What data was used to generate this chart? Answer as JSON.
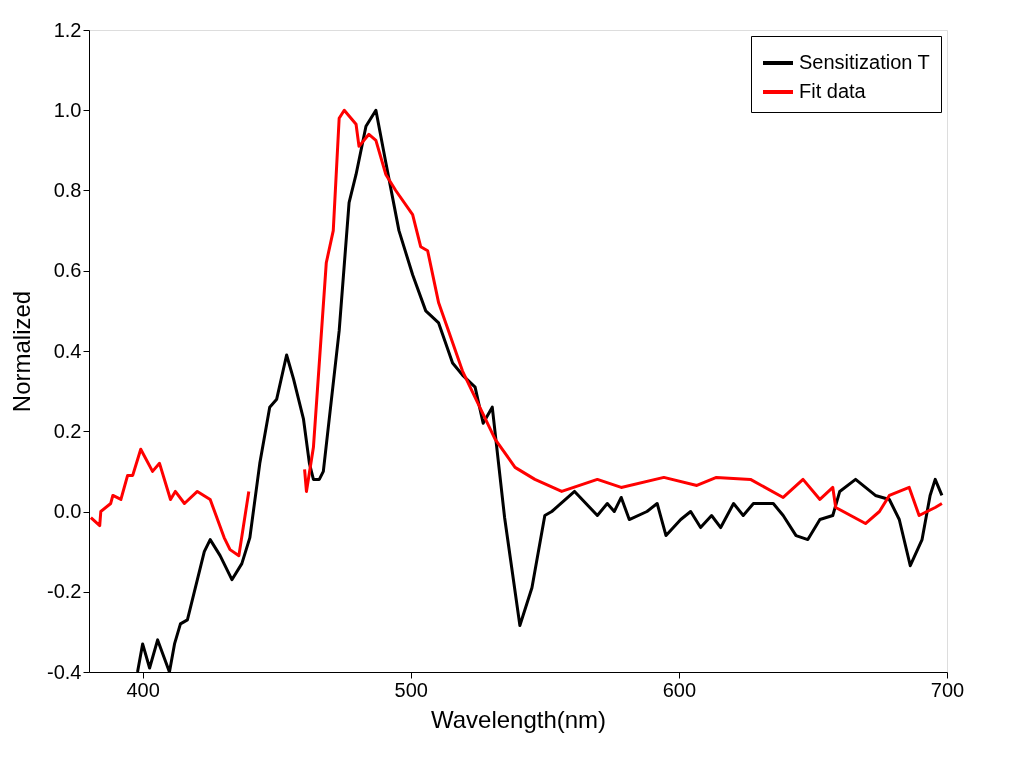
{
  "chart_data": {
    "type": "line",
    "xlabel": "Wavelength(nm)",
    "ylabel": "Normalized",
    "xlim": [
      380,
      700
    ],
    "xticks": [
      400,
      500,
      600,
      700
    ],
    "ylim": [
      -0.4,
      1.2
    ],
    "yticks": [
      {
        "value": -0.4,
        "label": "-0.4"
      },
      {
        "value": -0.2,
        "label": "-0.2"
      },
      {
        "value": 0,
        "label": "0.0"
      },
      {
        "value": 0.2,
        "label": "0.2"
      },
      {
        "value": 0.4,
        "label": "0.4"
      },
      {
        "value": 0.6,
        "label": "0.6"
      },
      {
        "value": 0.8,
        "label": "0.8"
      },
      {
        "value": 1,
        "label": "1.0"
      },
      {
        "value": 1.2,
        "label": "1.2"
      }
    ],
    "grid": false,
    "legend": "top right",
    "marker": "none",
    "line_style": "solid",
    "series": [
      {
        "name": "Sensitization T",
        "color": "#000000",
        "x": [
          398.1,
          400,
          402.6,
          405.6,
          410,
          411.9,
          414.1,
          416.7,
          423,
          425.2,
          428.9,
          433.3,
          437,
          440,
          443.7,
          447.4,
          450,
          453.7,
          456.3,
          460,
          462.2,
          463.7,
          465.9,
          467.4,
          473.3,
          477,
          479.6,
          483.3,
          487,
          490.7,
          495.6,
          500.7,
          505.6,
          510.4,
          515.6,
          519.3,
          524,
          527,
          530.4,
          535,
          540.7,
          545.2,
          550,
          552.6,
          561.1,
          569.6,
          573.3,
          575.9,
          578.5,
          581.5,
          588.1,
          591.9,
          595.2,
          600.7,
          604.4,
          608.1,
          612.2,
          615.6,
          620.4,
          624,
          627.8,
          635.2,
          638.9,
          643.7,
          648.1,
          652.6,
          657.4,
          660,
          665.9,
          673.3,
          678.5,
          682.2,
          686.3,
          690.7,
          693.7,
          695.6,
          698.1
        ],
        "values": [
          -0.4,
          -0.33,
          -0.39,
          -0.32,
          -0.4,
          -0.33,
          -0.28,
          -0.27,
          -0.1,
          -0.07,
          -0.11,
          -0.17,
          -0.13,
          -0.065,
          0.12,
          0.26,
          0.28,
          0.39,
          0.33,
          0.23,
          0.12,
          0.08,
          0.08,
          0.1,
          0.45,
          0.77,
          0.84,
          0.96,
          1.0,
          0.87,
          0.7,
          0.59,
          0.5,
          0.47,
          0.37,
          0.34,
          0.31,
          0.22,
          0.26,
          -0.015,
          -0.284,
          -0.19,
          -0.01,
          0.0,
          0.05,
          -0.01,
          0.02,
          0.0,
          0.035,
          -0.02,
          0.0,
          0.02,
          -0.06,
          -0.02,
          0.0,
          -0.04,
          -0.01,
          -0.04,
          0.02,
          -0.01,
          0.02,
          0.02,
          -0.01,
          -0.06,
          -0.07,
          -0.02,
          -0.01,
          0.05,
          0.08,
          0.04,
          0.03,
          -0.02,
          -0.135,
          -0.07,
          0.04,
          0.08,
          0.04
        ]
      },
      {
        "name": "Fit data",
        "color": "#ff0000",
        "x": [
          380.7,
          384,
          384.4,
          388.1,
          388.9,
          391.9,
          394.4,
          396.3,
          399.3,
          403.7,
          406.3,
          410.4,
          412.2,
          415.6,
          420.4,
          425.2,
          430.4,
          432.6,
          435.9,
          439.6,
          450,
          460.4,
          461.1,
          463.7,
          468.5,
          471.1,
          473.3,
          475.2,
          479.6,
          480.7,
          484.4,
          487,
          490.7,
          494.4,
          500.7,
          503.7,
          506.3,
          510.4,
          514.1,
          519.3,
          531.5,
          538.9,
          546.3,
          556.3,
          569.6,
          578.5,
          594.4,
          606.7,
          614,
          626.7,
          638.9,
          646.3,
          652.6,
          657.4,
          658.5,
          669.6,
          674.8,
          678.5,
          685.9,
          689.6,
          695.6,
          698.1
        ],
        "values": [
          -0.015,
          -0.035,
          0.0,
          0.02,
          0.04,
          0.03,
          0.09,
          0.09,
          0.155,
          0.1,
          0.12,
          0.03,
          0.05,
          0.02,
          0.05,
          0.03,
          -0.065,
          -0.095,
          -0.11,
          0.05,
          null,
          0.105,
          0.05,
          0.16,
          0.62,
          0.7,
          0.98,
          1.0,
          0.965,
          0.91,
          0.94,
          0.925,
          0.84,
          0.8,
          0.74,
          0.66,
          0.65,
          0.52,
          0.45,
          0.35,
          0.18,
          0.11,
          0.08,
          0.05,
          0.08,
          0.06,
          0.085,
          0.065,
          0.085,
          0.08,
          0.035,
          0.08,
          0.03,
          0.06,
          0.01,
          -0.03,
          0.0,
          0.04,
          0.06,
          -0.01,
          0.01,
          0.02
        ]
      }
    ]
  }
}
